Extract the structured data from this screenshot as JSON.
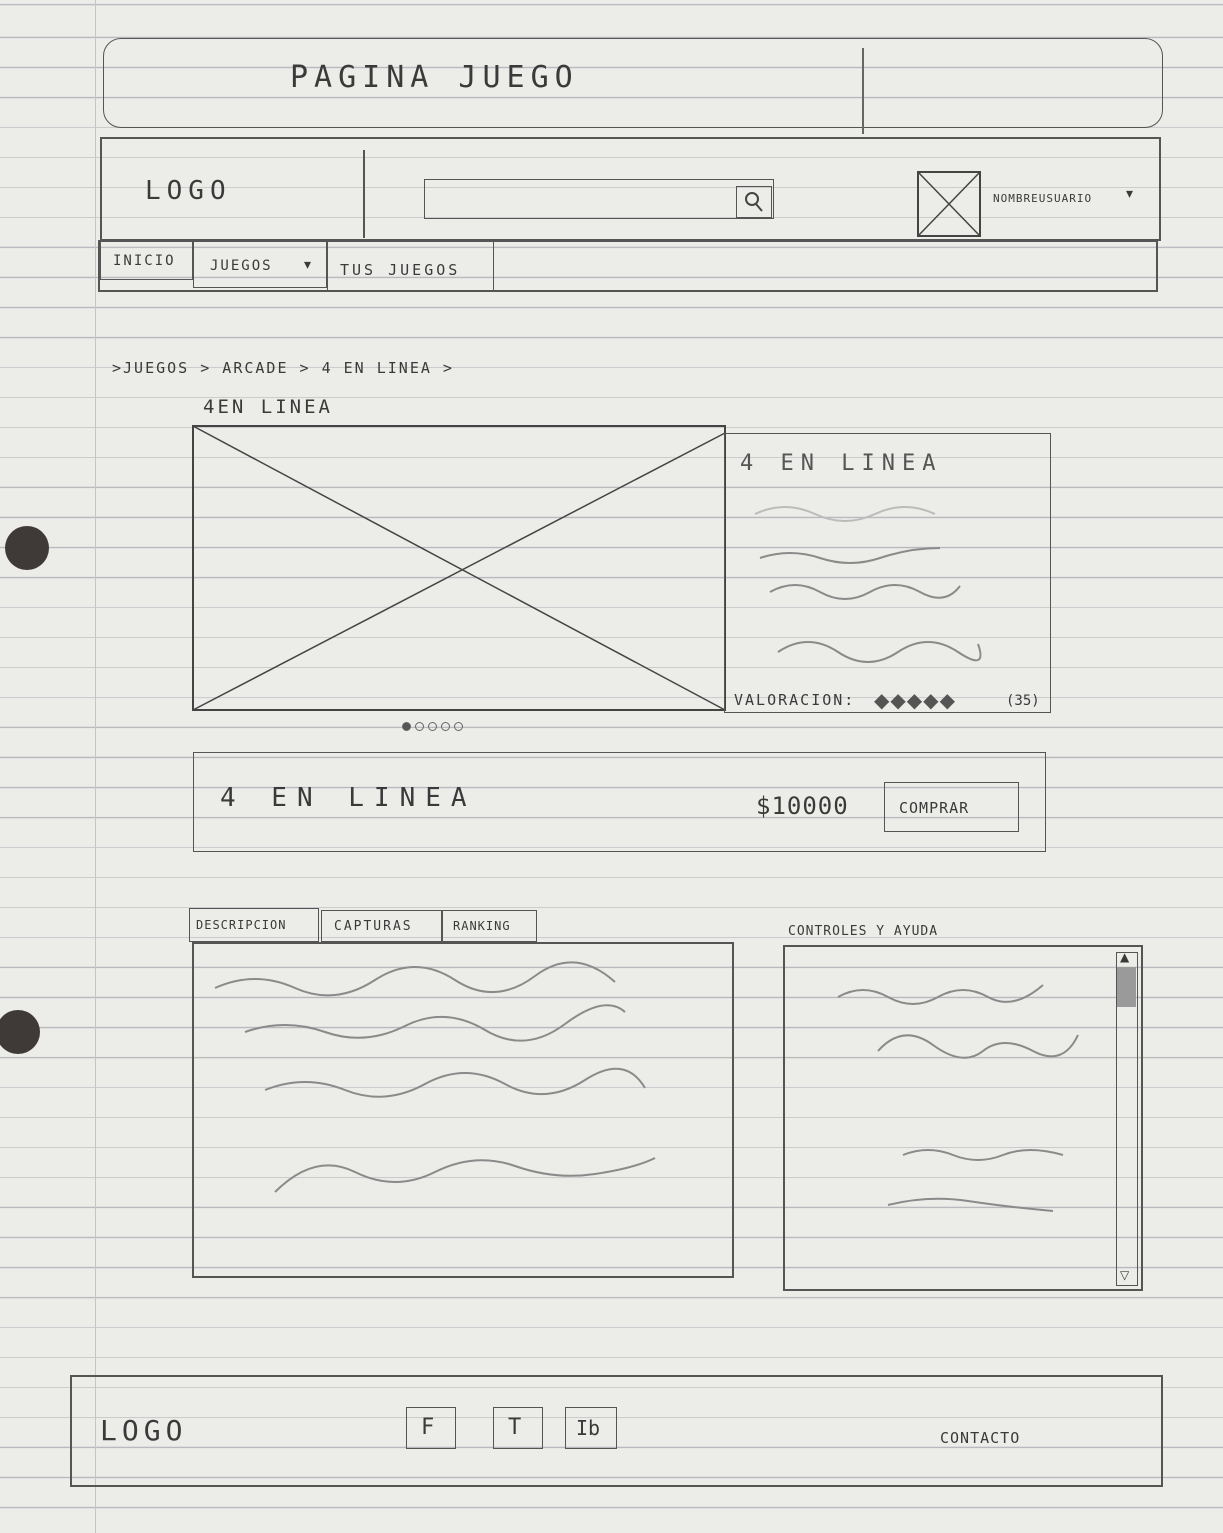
{
  "page_title": "PAGINA JUEGO",
  "header": {
    "logo": "LOGO",
    "search": {
      "value": "",
      "button_icon": "search-icon"
    },
    "user_name": "NOMBREUSUARIO",
    "avatar_icon": "image-placeholder-icon"
  },
  "nav": {
    "items": [
      {
        "label": "INICIO"
      },
      {
        "label": "JUEGOS",
        "icon": "chevron-down-icon"
      },
      {
        "label": "TUS JUEGOS"
      }
    ]
  },
  "breadcrumb": ">JUEGOS > ARCADE > 4 EN LINEA >",
  "game": {
    "heading": "4EN LINEA",
    "info_title": "4 EN LINEA",
    "rating_label": "VALORACION:",
    "rating_count": "(35)",
    "rating_value": 5,
    "rating_max": 5,
    "carousel_dots": 5,
    "carousel_active": 0
  },
  "purchase": {
    "title": "4 EN LINEA",
    "price": "$10000",
    "buy_label": "COMPRAR"
  },
  "tabs": {
    "items": [
      {
        "label": "DESCRIPCION"
      },
      {
        "label": "CAPTURAS"
      },
      {
        "label": "RANKING"
      }
    ]
  },
  "help": {
    "title": "CONTROLES Y AYUDA"
  },
  "footer": {
    "logo": "LOGO",
    "social": [
      {
        "label": "F",
        "icon": "facebook-icon"
      },
      {
        "label": "T",
        "icon": "twitter-icon"
      },
      {
        "label": "Ib",
        "icon": "instagram-icon"
      }
    ],
    "contact": "CONTACTO"
  },
  "colors": {
    "paper": "#ecece9",
    "ink": "#3a3a3a",
    "rule": "#b9b9bd"
  }
}
